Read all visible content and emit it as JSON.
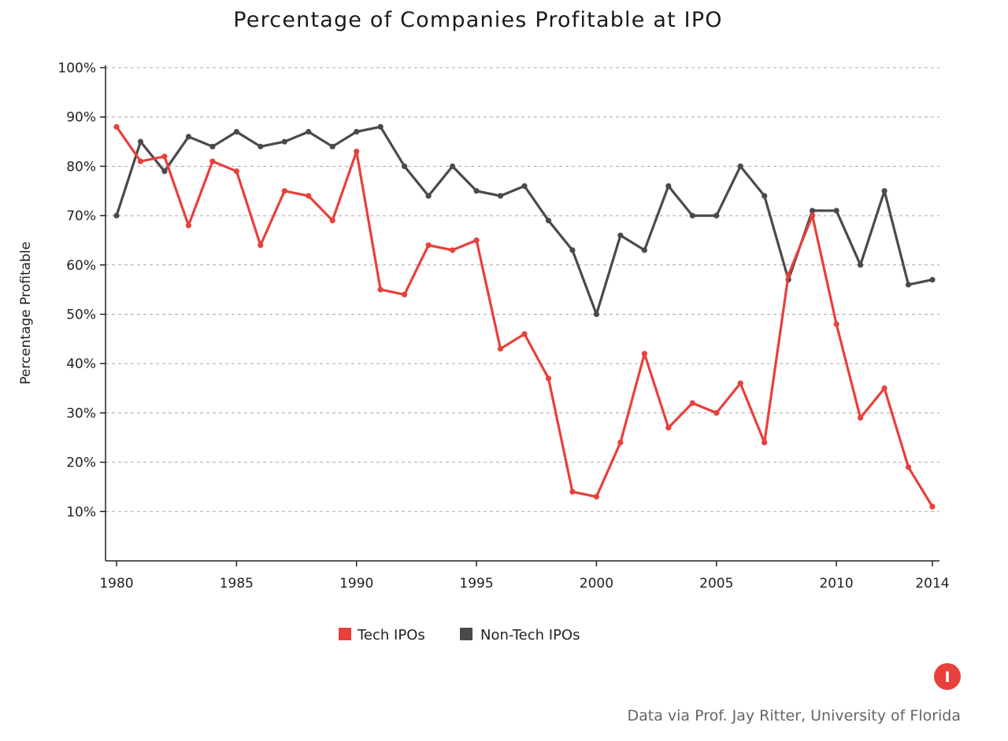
{
  "chart_data": {
    "type": "line",
    "title": "Percentage of Companies Profitable at IPO",
    "xlabel": "",
    "ylabel": "Percentage Profitable",
    "xlim": [
      1980,
      2014
    ],
    "ylim": [
      0,
      100
    ],
    "x_ticks": [
      "1980",
      "1985",
      "1990",
      "1995",
      "2000",
      "2005",
      "2010",
      "2014"
    ],
    "x_tick_values": [
      1980,
      1985,
      1990,
      1995,
      2000,
      2005,
      2010,
      2014
    ],
    "y_ticks": [
      "10%",
      "20%",
      "30%",
      "40%",
      "50%",
      "60%",
      "70%",
      "80%",
      "90%",
      "100%"
    ],
    "y_tick_values": [
      10,
      20,
      30,
      40,
      50,
      60,
      70,
      80,
      90,
      100
    ],
    "grid": true,
    "legend_position": "bottom-center",
    "x": [
      1980,
      1981,
      1982,
      1983,
      1984,
      1985,
      1986,
      1987,
      1988,
      1989,
      1990,
      1991,
      1992,
      1993,
      1994,
      1995,
      1996,
      1997,
      1998,
      1999,
      2000,
      2001,
      2002,
      2003,
      2004,
      2005,
      2006,
      2007,
      2008,
      2009,
      2010,
      2011,
      2012,
      2013,
      2014
    ],
    "series": [
      {
        "name": "Tech IPOs",
        "color": "#e8403a",
        "values": [
          88,
          81,
          82,
          68,
          81,
          79,
          64,
          75,
          74,
          69,
          83,
          55,
          54,
          64,
          63,
          65,
          43,
          46,
          37,
          14,
          13,
          24,
          42,
          27,
          32,
          30,
          36,
          24,
          58,
          70,
          48,
          29,
          35,
          19,
          11
        ]
      },
      {
        "name": "Non-Tech IPOs",
        "color": "#4a4a4a",
        "values": [
          70,
          85,
          79,
          86,
          84,
          87,
          84,
          85,
          87,
          84,
          87,
          88,
          80,
          74,
          80,
          75,
          74,
          76,
          69,
          63,
          50,
          66,
          63,
          76,
          70,
          70,
          80,
          74,
          57,
          71,
          71,
          60,
          75,
          56,
          57
        ]
      }
    ],
    "source": "Data via Prof. Jay Ritter, University of Florida",
    "logo": {
      "glyph": "I",
      "color": "#e8403a"
    }
  }
}
